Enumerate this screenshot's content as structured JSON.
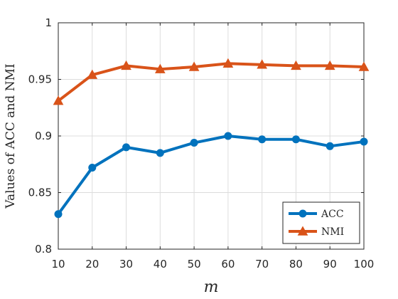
{
  "chart_data": {
    "type": "line",
    "xlabel": "m",
    "ylabel": "Values of ACC and NMI",
    "x": [
      10,
      20,
      30,
      40,
      50,
      60,
      70,
      80,
      90,
      100
    ],
    "xlim": [
      10,
      100
    ],
    "ylim": [
      0.8,
      1.0
    ],
    "yticks": [
      0.8,
      0.85,
      0.9,
      0.95,
      1.0
    ],
    "ytick_labels": [
      "0.8",
      "0.85",
      "0.9",
      "0.95",
      "1"
    ],
    "xtick_labels": [
      "10",
      "20",
      "30",
      "40",
      "50",
      "60",
      "70",
      "80",
      "90",
      "100"
    ],
    "grid": true,
    "legend_position": "bottom-right",
    "series": [
      {
        "name": "ACC",
        "marker": "circle",
        "color": "#0072BD",
        "values": [
          0.831,
          0.872,
          0.89,
          0.885,
          0.894,
          0.9,
          0.897,
          0.897,
          0.891,
          0.895
        ]
      },
      {
        "name": "NMI",
        "marker": "triangle",
        "color": "#D95319",
        "values": [
          0.931,
          0.954,
          0.962,
          0.959,
          0.961,
          0.964,
          0.963,
          0.962,
          0.962,
          0.961
        ]
      }
    ]
  }
}
